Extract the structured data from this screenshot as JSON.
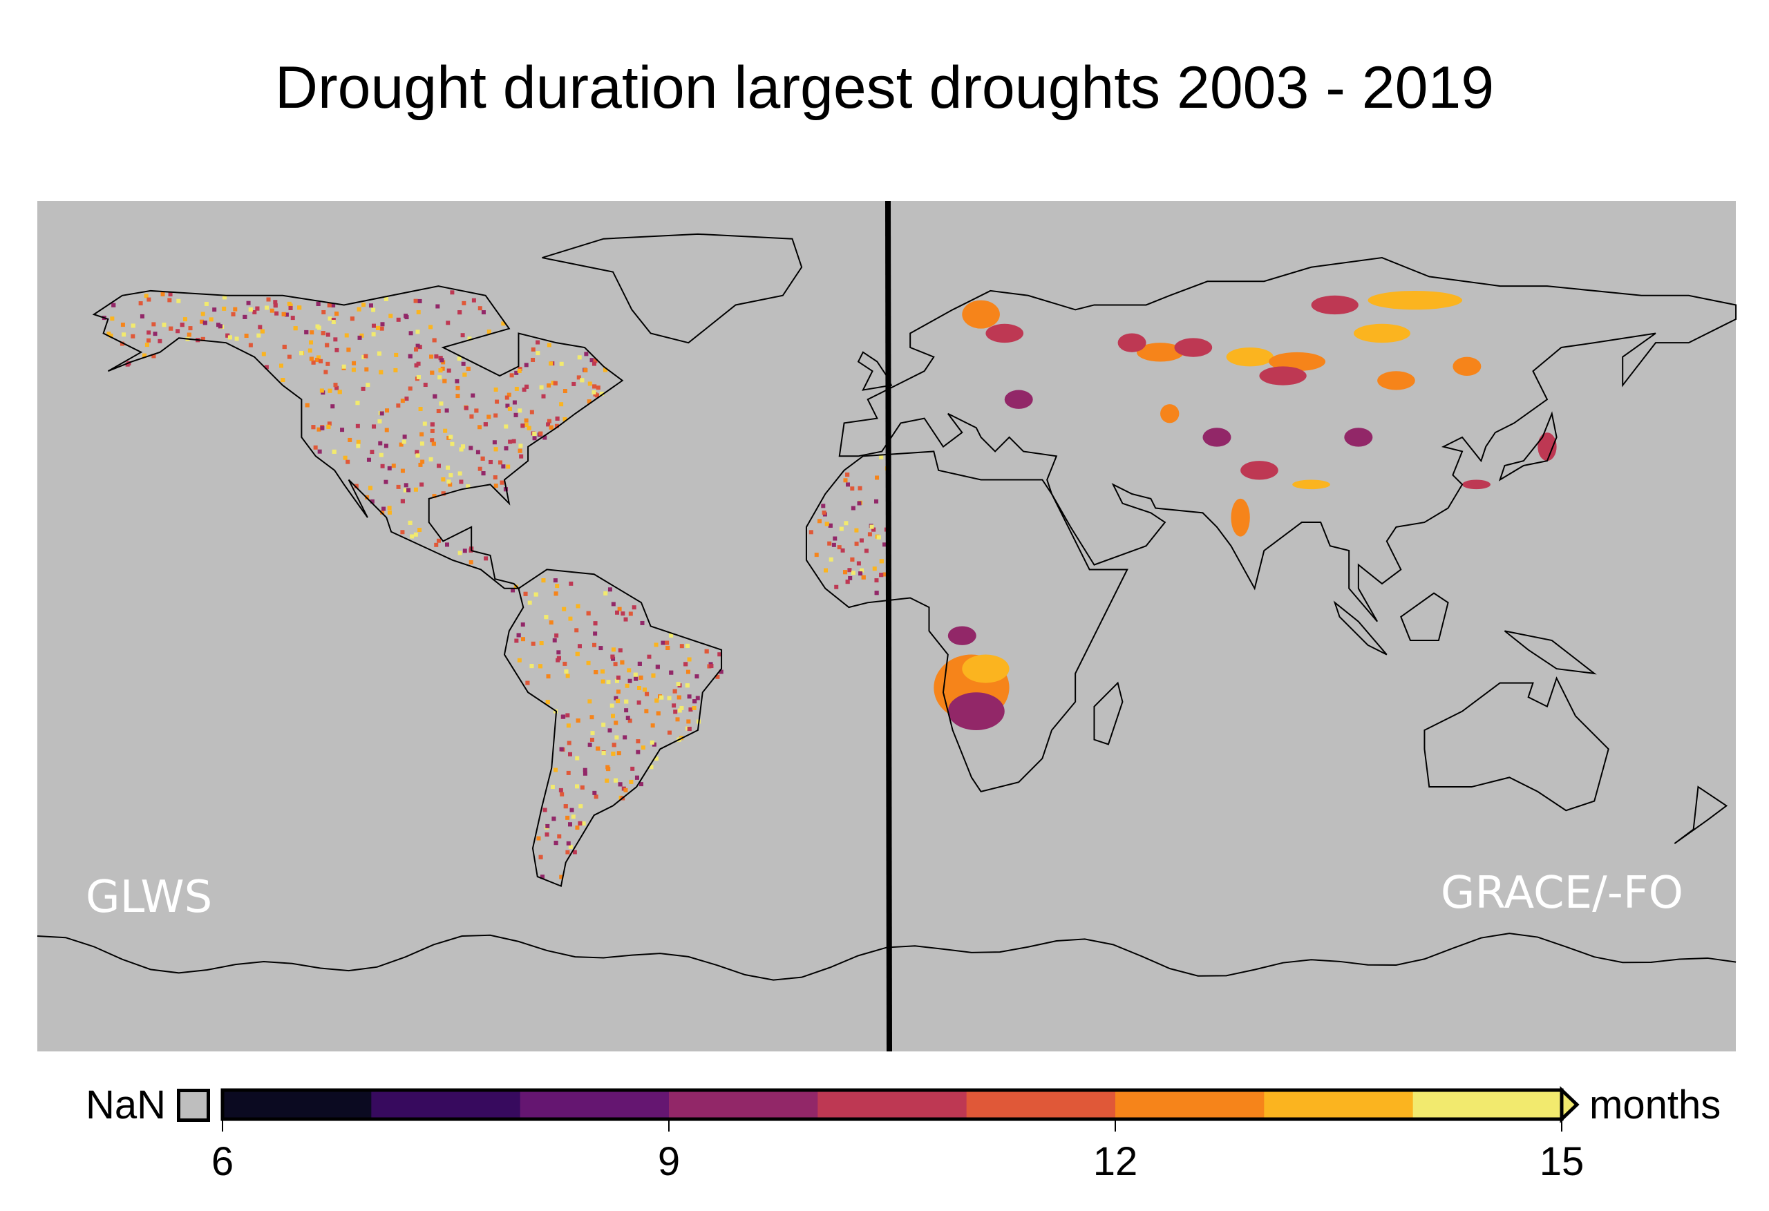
{
  "title": "Drought duration largest droughts 2003 - 2019",
  "panels": {
    "left_label": "GLWS",
    "right_label": "GRACE/-FO"
  },
  "colors": {
    "ocean_and_land_nan": "#bebebe",
    "coastline": "#000000",
    "divider": "#000000"
  },
  "chart_data": {
    "type": "heatmap",
    "title": "Drought duration largest droughts 2003 - 2019",
    "colorbar": {
      "label": "months",
      "nan_label": "NaN",
      "nan_color": "#bebebe",
      "bounds": [
        6,
        7,
        8,
        9,
        10,
        11,
        12,
        13,
        14,
        15
      ],
      "colors": [
        "#0b0a21",
        "#370a5e",
        "#651671",
        "#922768",
        "#be3853",
        "#e05838",
        "#f6841a",
        "#fbb41f",
        "#f2ea6e"
      ],
      "ticks": [
        "6",
        "9",
        "12",
        "15"
      ],
      "extend": "max"
    },
    "lon_range": [
      -180,
      180
    ],
    "lat_range": [
      -90,
      90
    ],
    "split_lon": 0
  }
}
